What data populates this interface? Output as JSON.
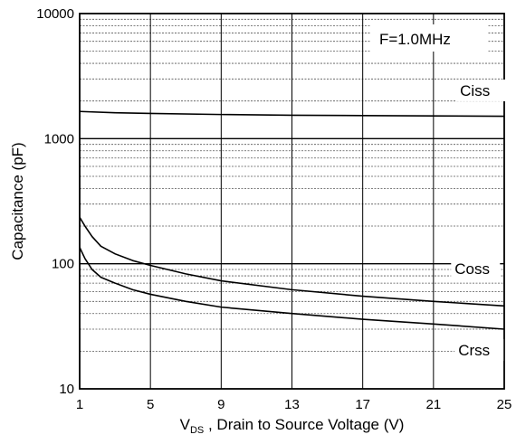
{
  "chart_data": {
    "type": "line",
    "title": "",
    "xlabel": {
      "main": "V",
      "sub": "DS",
      "rest": " , Drain to Source Voltage (V)"
    },
    "ylabel": "Capacitance (pF)",
    "annotation": "F=1.0MHz",
    "x_scale": "linear",
    "y_scale": "log",
    "xlim": [
      1,
      25
    ],
    "ylim": [
      10,
      10000
    ],
    "x_ticks": [
      "1",
      "5",
      "9",
      "13",
      "17",
      "21",
      "25"
    ],
    "y_ticks": [
      "10",
      "100",
      "1000",
      "10000"
    ],
    "grid": true,
    "series": [
      {
        "name": "Ciss",
        "x": [
          1,
          3,
          5,
          9,
          13,
          17,
          21,
          25
        ],
        "y": [
          1650,
          1610,
          1590,
          1560,
          1540,
          1530,
          1520,
          1510
        ]
      },
      {
        "name": "Coss",
        "x": [
          1,
          1.3,
          1.7,
          2.2,
          3,
          4,
          5,
          7,
          9,
          13,
          17,
          21,
          25
        ],
        "y": [
          235,
          200,
          165,
          138,
          120,
          106,
          97,
          83,
          73,
          62,
          55,
          50,
          46
        ]
      },
      {
        "name": "Crss",
        "x": [
          1,
          1.3,
          1.7,
          2.2,
          3,
          4,
          5,
          7,
          9,
          13,
          17,
          21,
          25
        ],
        "y": [
          135,
          110,
          90,
          78,
          70,
          62,
          57,
          50,
          45,
          40,
          36,
          33,
          30
        ]
      }
    ],
    "colors": {
      "line": "#000000",
      "grid": "#555555",
      "frame": "#000000"
    }
  }
}
